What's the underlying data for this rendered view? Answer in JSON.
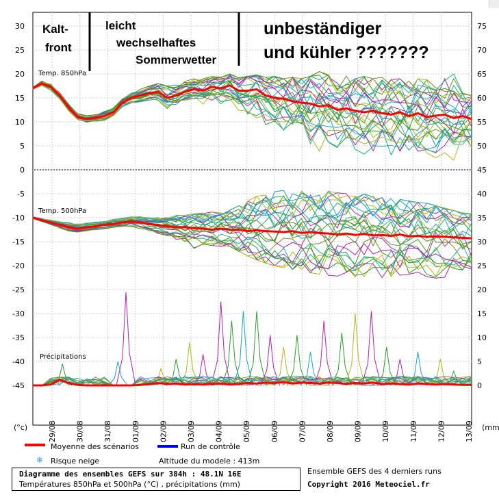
{
  "chart_data": {
    "type": "line",
    "panels": [
      {
        "id": "t850",
        "label": "Temp. 850hPa",
        "ylim": [
          0,
          30
        ],
        "y_ticks": [
          0,
          5,
          10,
          15,
          20,
          25,
          30
        ],
        "y_right_ticks": [
          45,
          50,
          55,
          60,
          65,
          70,
          75
        ],
        "mean": [
          17,
          18,
          17.3,
          15.5,
          13,
          11,
          10.6,
          10.8,
          11.2,
          12,
          14,
          15,
          15.5,
          16,
          16.3,
          15,
          15.5,
          16.3,
          16.8,
          16.5,
          17.3,
          17,
          17.6,
          16.5,
          16.5,
          16.8,
          15.5,
          15,
          14.8,
          14.3,
          14,
          13.8,
          13.2,
          13.5,
          12.5,
          12.8,
          12.3,
          12,
          12.3,
          11.8,
          11.5,
          12,
          11.2,
          11.8,
          11,
          11.3,
          11.5,
          10.8,
          11.2,
          10.6
        ],
        "spread_low": [
          16.8,
          17.5,
          16.5,
          14.8,
          12.3,
          10.3,
          9.8,
          10,
          10.3,
          11.3,
          13,
          13.8,
          14,
          14.3,
          14.5,
          12.5,
          13,
          14,
          14,
          13.5,
          14,
          13,
          13.5,
          11,
          9.5,
          8.8,
          7,
          6.5,
          5.5,
          5.2,
          4.8,
          3.5,
          2.8,
          3,
          2.5,
          2,
          3,
          2.5,
          2.3,
          3,
          2.8,
          2.5,
          3.5,
          2,
          3,
          2.5,
          3.5,
          2,
          1.5,
          2.2
        ],
        "spread_high": [
          17.3,
          18.6,
          18,
          16.2,
          13.8,
          11.8,
          11.3,
          11.5,
          12.2,
          13,
          14.8,
          16,
          16.8,
          17.5,
          18,
          17.5,
          18,
          18.5,
          19,
          19,
          19.5,
          19.3,
          20,
          19.2,
          19.5,
          19.8,
          19.3,
          19.5,
          19,
          19.3,
          19,
          19.5,
          20.5,
          19.8,
          19.5,
          19.8,
          19,
          19.5,
          19,
          19.3,
          18.8,
          19,
          18.5,
          19,
          18.8,
          19.2,
          19,
          20,
          16,
          15.5
        ]
      },
      {
        "id": "t500",
        "label": "Temp. 500hPa",
        "ylim": [
          -20,
          -5
        ],
        "y_ticks": [
          -5,
          -10,
          -15,
          -20
        ],
        "y_right_ticks": [
          40,
          35,
          30,
          25
        ],
        "mean": [
          -10,
          -10.5,
          -11,
          -11.5,
          -12,
          -12.3,
          -12,
          -11.8,
          -11.5,
          -11.3,
          -11,
          -10.8,
          -11,
          -11.3,
          -11.5,
          -11.8,
          -12,
          -12,
          -12.2,
          -12.3,
          -12.5,
          -12.3,
          -12.5,
          -12.5,
          -12.8,
          -12.6,
          -12.8,
          -12.9,
          -13,
          -12.8,
          -13.2,
          -13,
          -13.2,
          -13.3,
          -13.5,
          -13.3,
          -13.6,
          -13.4,
          -13.7,
          -13.6,
          -13.8,
          -13.5,
          -13.9,
          -13.8,
          -14,
          -13.9,
          -14,
          -14.1,
          -14.2,
          -14.3
        ],
        "spread_low": [
          -10.2,
          -10.8,
          -11.5,
          -12.2,
          -12.8,
          -13,
          -12.8,
          -12.5,
          -12.3,
          -12,
          -11.8,
          -11.8,
          -12.3,
          -12.8,
          -13.3,
          -14,
          -14.5,
          -16,
          -16.5,
          -15.5,
          -15.8,
          -16,
          -16,
          -17,
          -18,
          -18.8,
          -19.5,
          -20,
          -20.5,
          -20.8,
          -21,
          -21.5,
          -21.8,
          -22,
          -22.2,
          -22,
          -22.5,
          -22.3,
          -22,
          -22.5,
          -22.3,
          -22,
          -21.8,
          -22.5,
          -22.3,
          -22.8,
          -23,
          -23,
          -22.5,
          -23.3
        ],
        "spread_high": [
          -9.8,
          -10.2,
          -10.5,
          -10.8,
          -11,
          -11.2,
          -11,
          -10.8,
          -10.5,
          -10.2,
          -9.8,
          -9.5,
          -9.8,
          -10,
          -10,
          -10,
          -9.5,
          -9.5,
          -9.2,
          -9,
          -8.8,
          -8.5,
          -8.3,
          -7.5,
          -6.5,
          -5.5,
          -5,
          -4.5,
          -4.3,
          -4.5,
          -4.5,
          -4.8,
          -5,
          -4.5,
          -4.8,
          -5,
          -5.5,
          -5,
          -5.5,
          -5.8,
          -6,
          -6.2,
          -6.5,
          -6.8,
          -7,
          -7.5,
          -8,
          -8.5,
          -9,
          -9.2
        ]
      },
      {
        "id": "precip",
        "label": "Précipitations",
        "ylim": [
          0,
          15
        ],
        "y_ticks": [
          -25,
          -30,
          -35,
          -40,
          -45
        ],
        "y_right_ticks": [
          20,
          15,
          10,
          5,
          0
        ],
        "mean": [
          0,
          0,
          0.2,
          1.2,
          0.5,
          0.1,
          0,
          0,
          0,
          0,
          0,
          0,
          0.1,
          0.3,
          0.5,
          0.3,
          0.4,
          0.2,
          0.3,
          0.2,
          0.3,
          0.4,
          0.2,
          0.3,
          0.5,
          0.4,
          0.6,
          0.5,
          0.7,
          0.4,
          0.6,
          0.5,
          0.4,
          0.6,
          0.5,
          0.3,
          0.5,
          0.4,
          0.6,
          0.3,
          0.4,
          0.3,
          0.2,
          0.4,
          0.3,
          0.2,
          0.3,
          0.2,
          0.1,
          0.1
        ],
        "peaks": [
          {
            "x": 3.3,
            "y": 4.5,
            "color": "#2a9d2a"
          },
          {
            "x": 10.4,
            "y": 19.5,
            "color": "#b020b0"
          },
          {
            "x": 9.5,
            "y": 5,
            "color": "#1aa3c8"
          },
          {
            "x": 14.3,
            "y": 3.5,
            "color": "#b5b51a"
          },
          {
            "x": 16.0,
            "y": 5.5,
            "color": "#2a9d2a"
          },
          {
            "x": 17.5,
            "y": 9,
            "color": "#b5b51a"
          },
          {
            "x": 19.0,
            "y": 6.5,
            "color": "#b020b0"
          },
          {
            "x": 21.0,
            "y": 17.5,
            "color": "#b020b0"
          },
          {
            "x": 22.2,
            "y": 13.5,
            "color": "#2a9d2a"
          },
          {
            "x": 23.5,
            "y": 15.5,
            "color": "#1aa3c8"
          },
          {
            "x": 25.0,
            "y": 15.5,
            "color": "#2a9d2a"
          },
          {
            "x": 26.5,
            "y": 10.5,
            "color": "#b020b0"
          },
          {
            "x": 28.0,
            "y": 8,
            "color": "#b5b51a"
          },
          {
            "x": 29.5,
            "y": 10.5,
            "color": "#2a9d2a"
          },
          {
            "x": 31.0,
            "y": 7,
            "color": "#1aa3c8"
          },
          {
            "x": 32.5,
            "y": 13.5,
            "color": "#b020b0"
          },
          {
            "x": 34.5,
            "y": 11,
            "color": "#2a9d2a"
          },
          {
            "x": 36.0,
            "y": 15,
            "color": "#b5b51a"
          },
          {
            "x": 37.8,
            "y": 15.5,
            "color": "#b020b0"
          },
          {
            "x": 39.5,
            "y": 8,
            "color": "#2a9d2a"
          },
          {
            "x": 41.0,
            "y": 5.5,
            "color": "#b020b0"
          },
          {
            "x": 43.0,
            "y": 7,
            "color": "#1aa3c8"
          },
          {
            "x": 45.5,
            "y": 5.5,
            "color": "#b5b51a"
          },
          {
            "x": 47.0,
            "y": 3,
            "color": "#2a9d2a"
          }
        ]
      }
    ],
    "x_labels": [
      "29/08",
      "30/08",
      "31/08",
      "01/09",
      "02/09",
      "03/09",
      "04/09",
      "05/09",
      "06/09",
      "07/09",
      "08/09",
      "09/09",
      "10/09",
      "11/09",
      "12/09",
      "13/09"
    ],
    "n_steps": 50,
    "left_axis_labels": [
      30,
      25,
      20,
      15,
      10,
      5,
      0,
      -5,
      -10,
      -15,
      -20,
      -25,
      -30,
      -35,
      -40,
      -45
    ],
    "right_axis_labels": [
      75,
      70,
      65,
      60,
      55,
      50,
      45,
      40,
      35,
      30,
      25,
      20,
      15,
      10,
      5,
      0
    ],
    "left_unit": "(°c)",
    "right_unit": "(mm)",
    "series_colors": [
      "#2a9d2a",
      "#1aa3c8",
      "#b020b0",
      "#b5b51a",
      "#16b38a",
      "#6b8e23"
    ],
    "mean_color": "#ff0000",
    "control_color": "#0000ff"
  },
  "annotations": {
    "kaltfront_1": "Kalt-",
    "kaltfront_2": "front",
    "leicht": "leicht",
    "wechselhaftes": "wechselhaftes",
    "sommerwetter": "Sommerwetter",
    "unbestaendiger": "unbeständiger",
    "kuehler": "und kühler ???????"
  },
  "legend": {
    "mean_label": "Moyenne des scénarios",
    "control_label": "Run de contrôle",
    "snow_label": "Risque neige",
    "altitude_label": "Altitude du modele : 413m",
    "ensemble_label": "Ensemble GEFS des 4 derniers runs",
    "copyright": "Copyright 2016 Meteociel.fr"
  },
  "title_box": {
    "line1": "Diagramme des ensembles GEFS sur 384h : 48.1N 16E",
    "line2": "Températures 850hPa et 500hPa (°C) , précipitations (mm)"
  },
  "colors": {
    "grid": "#c8c8c8",
    "mean": "#ff0000",
    "control": "#0000ff",
    "snow": "#3399ff"
  }
}
